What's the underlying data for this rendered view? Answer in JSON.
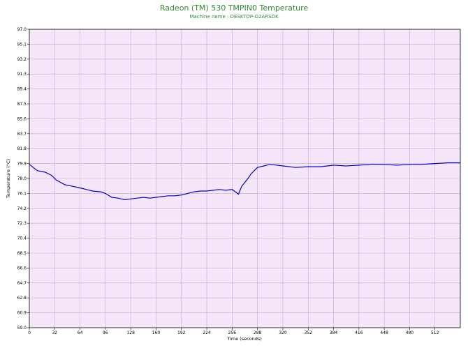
{
  "chart_data": {
    "type": "line",
    "title": "Radeon (TM) 530 TMPIN0 Temperature",
    "subtitle": "Machine name : DESKTOP-O2ARSDK",
    "xlabel": "Time (seconds)",
    "ylabel": "Temperature (°C)",
    "xlim": [
      0,
      544
    ],
    "ylim": [
      59.0,
      97.0
    ],
    "x_ticks": [
      "0",
      "32",
      "64",
      "96",
      "128",
      "160",
      "192",
      "224",
      "256",
      "288",
      "320",
      "352",
      "384",
      "416",
      "448",
      "480",
      "512"
    ],
    "y_ticks": [
      "97.0",
      "95.1",
      "93.2",
      "91.3",
      "89.4",
      "87.5",
      "85.6",
      "83.7",
      "81.8",
      "79.9",
      "78.0",
      "76.1",
      "74.2",
      "72.3",
      "70.4",
      "68.5",
      "66.6",
      "64.7",
      "62.8",
      "60.9",
      "59.0"
    ],
    "grid": true,
    "colors": {
      "plot_background": "#f5e6fa",
      "grid": "#c9a7d8",
      "line": "#0000cc",
      "title": "#2e8b2e"
    },
    "series": [
      {
        "x": [
          0,
          10,
          20,
          28,
          34,
          45,
          55,
          64,
          72,
          80,
          90,
          96,
          104,
          112,
          120,
          128,
          136,
          144,
          152,
          160,
          168,
          176,
          184,
          192,
          200,
          208,
          216,
          224,
          232,
          240,
          248,
          256,
          264,
          268,
          272,
          276,
          280,
          284,
          288,
          296,
          304,
          320,
          336,
          352,
          368,
          384,
          400,
          416,
          432,
          448,
          464,
          480,
          496,
          512,
          528,
          544
        ],
        "values": [
          79.8,
          79.0,
          78.8,
          78.4,
          77.8,
          77.2,
          77.0,
          76.8,
          76.6,
          76.4,
          76.3,
          76.1,
          75.6,
          75.5,
          75.3,
          75.4,
          75.5,
          75.6,
          75.5,
          75.6,
          75.7,
          75.8,
          75.8,
          75.9,
          76.1,
          76.3,
          76.4,
          76.4,
          76.5,
          76.6,
          76.5,
          76.6,
          76.0,
          77.0,
          77.5,
          78.0,
          78.6,
          79.0,
          79.4,
          79.6,
          79.8,
          79.6,
          79.4,
          79.5,
          79.5,
          79.7,
          79.6,
          79.7,
          79.8,
          79.8,
          79.7,
          79.8,
          79.8,
          79.9,
          80.0,
          80.0
        ]
      }
    ]
  }
}
